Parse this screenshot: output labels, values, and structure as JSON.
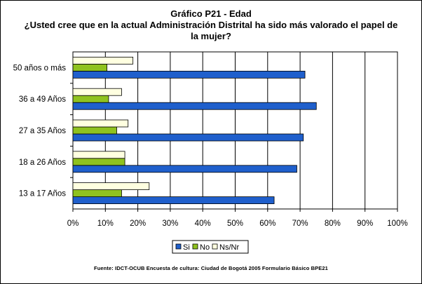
{
  "chart_data": {
    "type": "bar",
    "orientation": "horizontal",
    "title": "Gráfico P21 - Edad",
    "subtitle": "¿Usted cree que en la actual Administración Distrital ha sido más valorado el papel de la mujer?",
    "categories": [
      "50 años o más",
      "36 a 49 Años",
      "27 a 35 Años",
      "18 a 26 Años",
      "13 a 17 Años"
    ],
    "series": [
      {
        "name": "Si",
        "values": [
          71.5,
          75.0,
          71.0,
          69.0,
          62.0
        ],
        "color": "#1F5FCC"
      },
      {
        "name": "No",
        "values": [
          10.5,
          11.0,
          13.5,
          16.0,
          15.0
        ],
        "color": "#8FC21F"
      },
      {
        "name": "Ns/Nr",
        "values": [
          18.5,
          15.0,
          17.0,
          16.0,
          23.5
        ],
        "color": "#FFFFE0"
      }
    ],
    "xlim": [
      0,
      100
    ],
    "x_ticks": [
      "0%",
      "10%",
      "20%",
      "30%",
      "40%",
      "50%",
      "60%",
      "70%",
      "80%",
      "90%",
      "100%"
    ],
    "grid": true,
    "legend_position": "bottom"
  },
  "source_note": "Fuente: IDCT-OCUB Encuesta de cultura: Ciudad de Bogotá 2005 Formulario Básico BPE21"
}
